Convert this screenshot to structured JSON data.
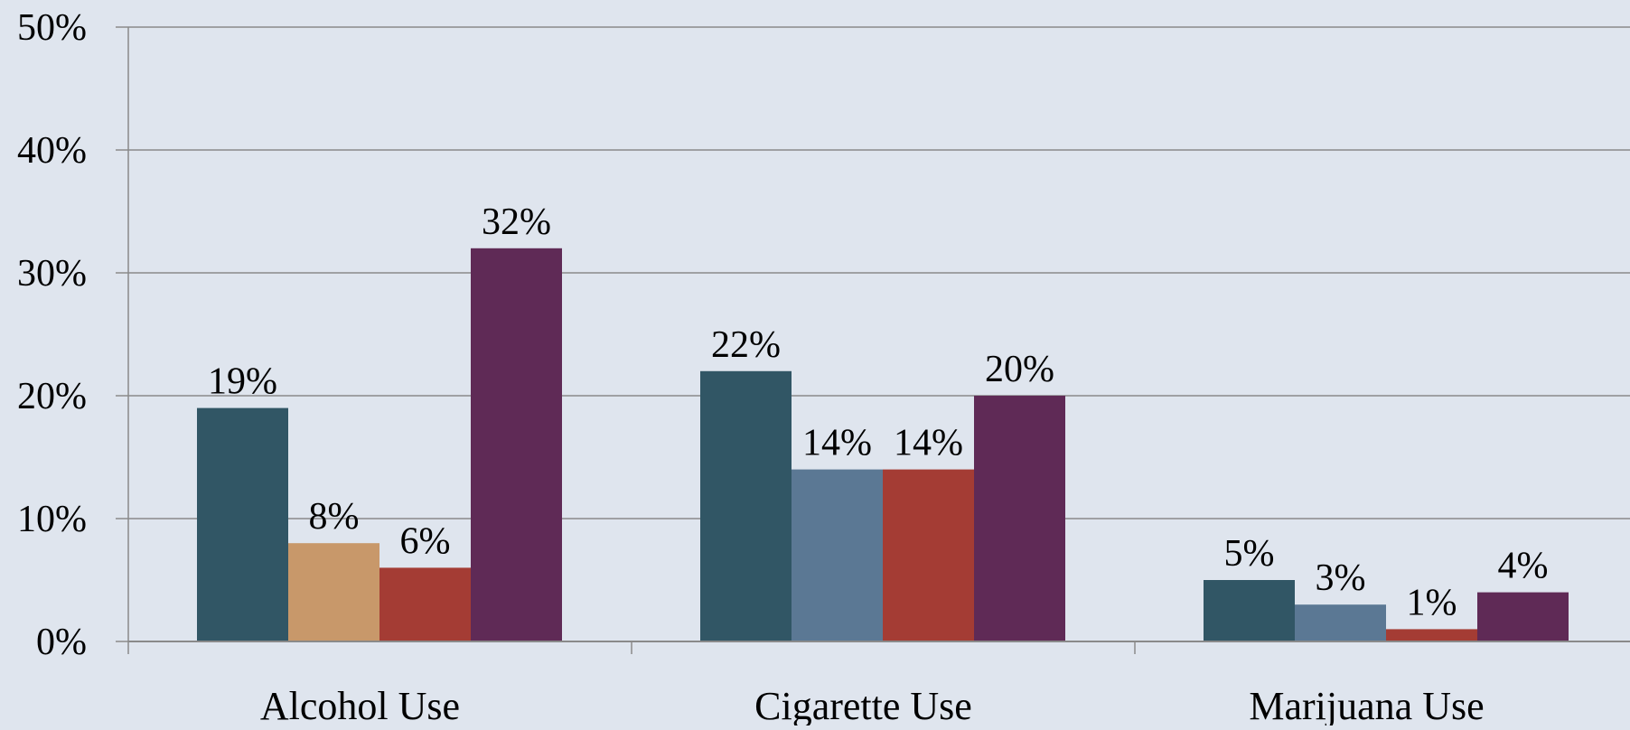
{
  "chart_data": {
    "type": "bar",
    "categories": [
      "Alcohol Use",
      "Cigarette Use",
      "Marijuana Use"
    ],
    "series": [
      {
        "color": "#315665",
        "values": [
          19,
          22,
          5
        ]
      },
      {
        "colors": [
          "#c8986a",
          "#5b7894",
          "#5b7894"
        ],
        "values": [
          8,
          14,
          3
        ]
      },
      {
        "color": "#a43c34",
        "values": [
          6,
          14,
          1
        ]
      },
      {
        "color": "#5f2a56",
        "values": [
          32,
          20,
          4
        ]
      }
    ],
    "value_labels": [
      [
        "19%",
        "22%",
        "5%"
      ],
      [
        "8%",
        "14%",
        "3%"
      ],
      [
        "6%",
        "14%",
        "1%"
      ],
      [
        "32%",
        "20%",
        "4%"
      ]
    ],
    "y_ticks": [
      0,
      10,
      20,
      30,
      40,
      50
    ],
    "y_tick_labels": [
      "0%",
      "10%",
      "20%",
      "30%",
      "40%",
      "50%"
    ],
    "ylim": [
      0,
      50
    ],
    "grid": true,
    "colors": {
      "background": "#dfe5ee",
      "grid": "#8a8a8a",
      "axis": "#8a8a8a"
    }
  }
}
